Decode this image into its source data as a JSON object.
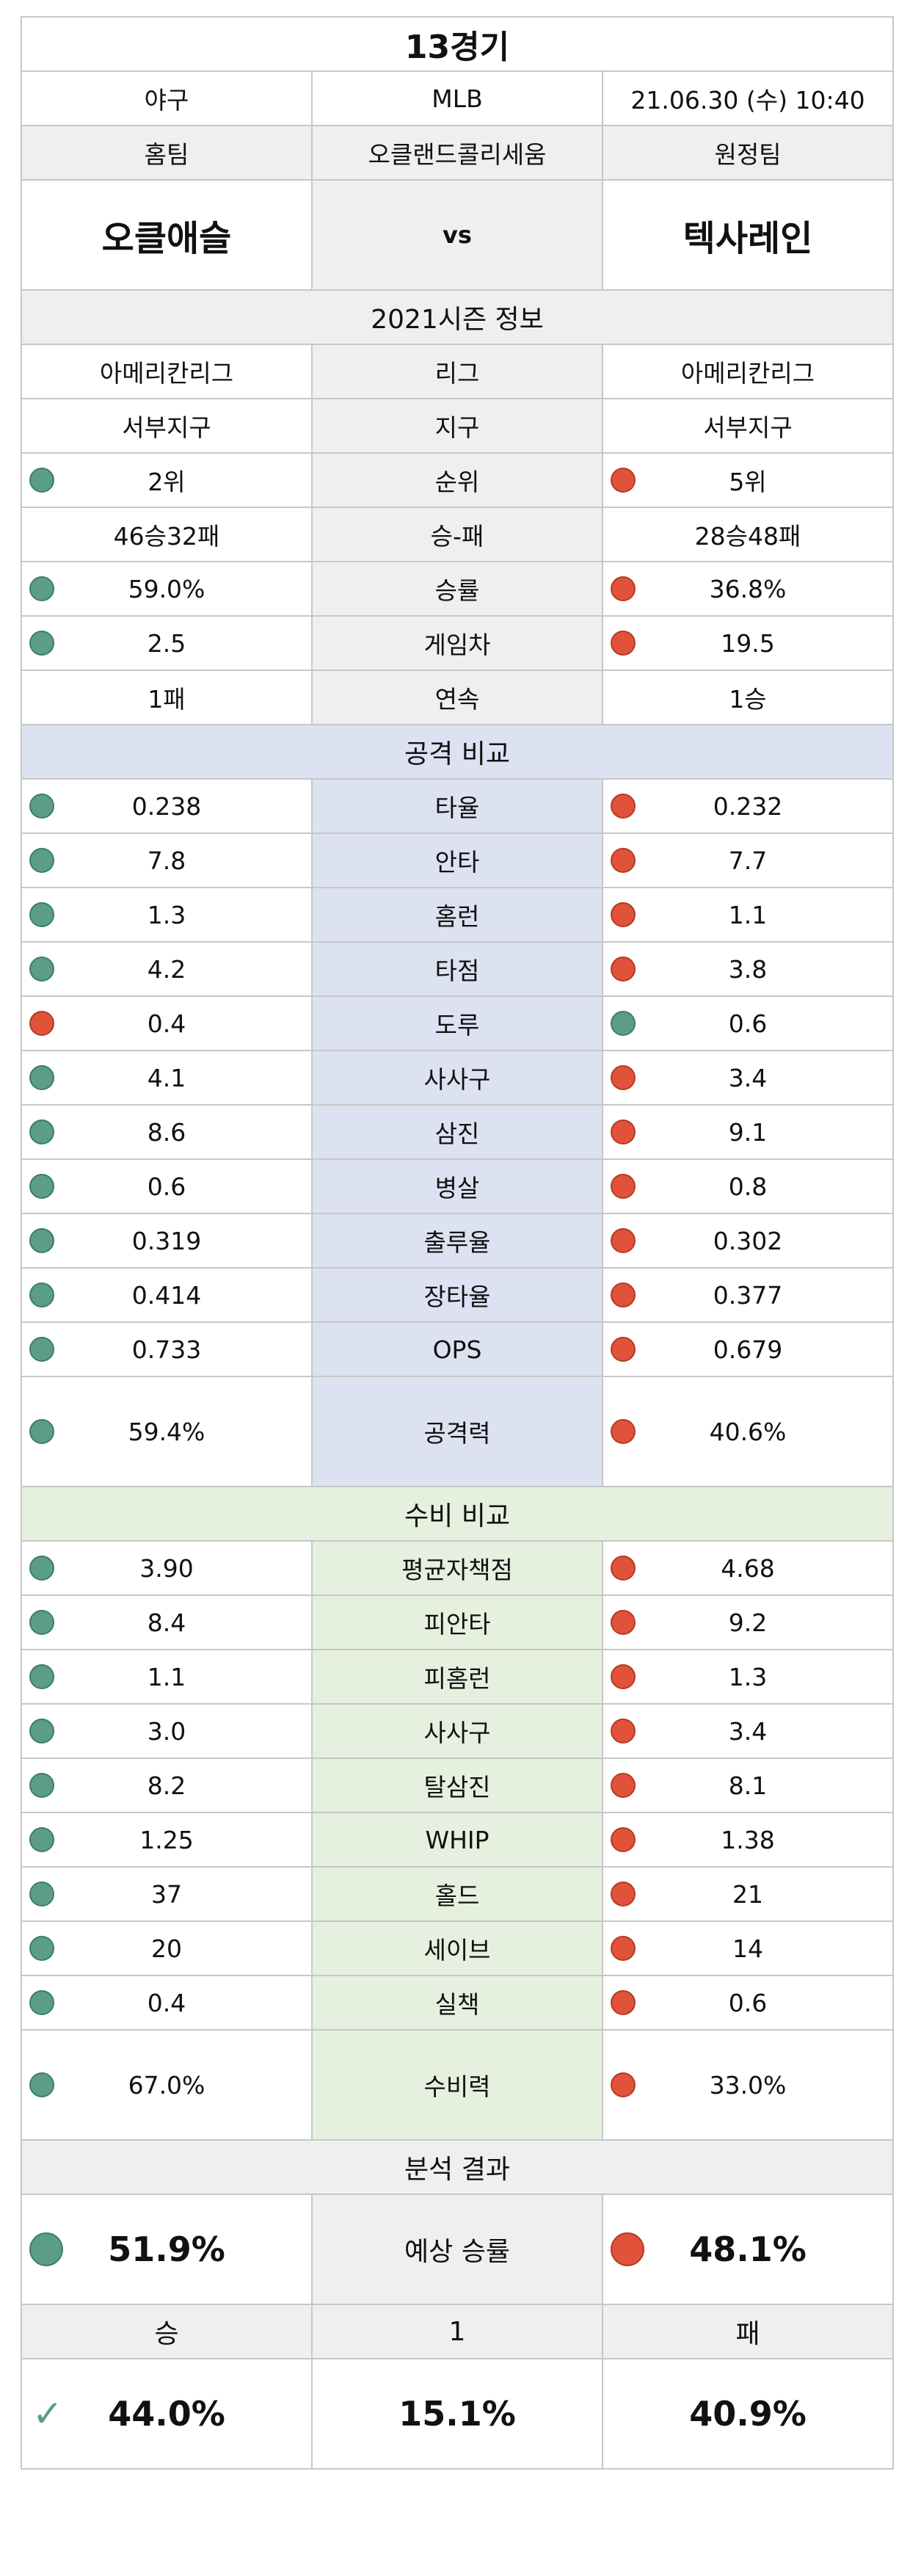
{
  "header": {
    "title": "13경기",
    "sport": "야구",
    "league": "MLB",
    "datetime": "21.06.30 (수) 10:40",
    "home_label": "홈팀",
    "venue": "오클랜드콜리세움",
    "away_label": "원정팀",
    "home_team": "오클애슬",
    "vs": "vs",
    "away_team": "텍사레인"
  },
  "season": {
    "section_title": "2021시즌 정보",
    "rows": [
      {
        "label": "리그",
        "home": "아메리칸리그",
        "away": "아메리칸리그",
        "home_dot": "",
        "away_dot": ""
      },
      {
        "label": "지구",
        "home": "서부지구",
        "away": "서부지구",
        "home_dot": "",
        "away_dot": ""
      },
      {
        "label": "순위",
        "home": "2위",
        "away": "5위",
        "home_dot": "green",
        "away_dot": "red"
      },
      {
        "label": "승-패",
        "home": "46승32패",
        "away": "28승48패",
        "home_dot": "",
        "away_dot": ""
      },
      {
        "label": "승률",
        "home": "59.0%",
        "away": "36.8%",
        "home_dot": "green",
        "away_dot": "red"
      },
      {
        "label": "게임차",
        "home": "2.5",
        "away": "19.5",
        "home_dot": "green",
        "away_dot": "red"
      },
      {
        "label": "연속",
        "home": "1패",
        "away": "1승",
        "home_dot": "",
        "away_dot": ""
      }
    ]
  },
  "attack": {
    "section_title": "공격 비교",
    "rows": [
      {
        "label": "타율",
        "home": "0.238",
        "away": "0.232",
        "home_dot": "green",
        "away_dot": "red"
      },
      {
        "label": "안타",
        "home": "7.8",
        "away": "7.7",
        "home_dot": "green",
        "away_dot": "red"
      },
      {
        "label": "홈런",
        "home": "1.3",
        "away": "1.1",
        "home_dot": "green",
        "away_dot": "red"
      },
      {
        "label": "타점",
        "home": "4.2",
        "away": "3.8",
        "home_dot": "green",
        "away_dot": "red"
      },
      {
        "label": "도루",
        "home": "0.4",
        "away": "0.6",
        "home_dot": "red",
        "away_dot": "green"
      },
      {
        "label": "사사구",
        "home": "4.1",
        "away": "3.4",
        "home_dot": "green",
        "away_dot": "red"
      },
      {
        "label": "삼진",
        "home": "8.6",
        "away": "9.1",
        "home_dot": "green",
        "away_dot": "red"
      },
      {
        "label": "병살",
        "home": "0.6",
        "away": "0.8",
        "home_dot": "green",
        "away_dot": "red"
      },
      {
        "label": "출루율",
        "home": "0.319",
        "away": "0.302",
        "home_dot": "green",
        "away_dot": "red"
      },
      {
        "label": "장타율",
        "home": "0.414",
        "away": "0.377",
        "home_dot": "green",
        "away_dot": "red"
      },
      {
        "label": "OPS",
        "home": "0.733",
        "away": "0.679",
        "home_dot": "green",
        "away_dot": "red"
      }
    ],
    "power": {
      "label": "공격력",
      "home": "59.4%",
      "away": "40.6%",
      "home_dot": "green",
      "away_dot": "red"
    }
  },
  "defense": {
    "section_title": "수비 비교",
    "rows": [
      {
        "label": "평균자책점",
        "home": "3.90",
        "away": "4.68",
        "home_dot": "green",
        "away_dot": "red"
      },
      {
        "label": "피안타",
        "home": "8.4",
        "away": "9.2",
        "home_dot": "green",
        "away_dot": "red"
      },
      {
        "label": "피홈런",
        "home": "1.1",
        "away": "1.3",
        "home_dot": "green",
        "away_dot": "red"
      },
      {
        "label": "사사구",
        "home": "3.0",
        "away": "3.4",
        "home_dot": "green",
        "away_dot": "red"
      },
      {
        "label": "탈삼진",
        "home": "8.2",
        "away": "8.1",
        "home_dot": "green",
        "away_dot": "red"
      },
      {
        "label": "WHIP",
        "home": "1.25",
        "away": "1.38",
        "home_dot": "green",
        "away_dot": "red"
      },
      {
        "label": "홀드",
        "home": "37",
        "away": "21",
        "home_dot": "green",
        "away_dot": "red"
      },
      {
        "label": "세이브",
        "home": "20",
        "away": "14",
        "home_dot": "green",
        "away_dot": "red"
      },
      {
        "label": "실책",
        "home": "0.4",
        "away": "0.6",
        "home_dot": "green",
        "away_dot": "red"
      }
    ],
    "power": {
      "label": "수비력",
      "home": "67.0%",
      "away": "33.0%",
      "home_dot": "green",
      "away_dot": "red"
    }
  },
  "analysis": {
    "section_title": "분석 결과",
    "expected_label": "예상 승률",
    "home_expected": "51.9%",
    "away_expected": "48.1%",
    "win_label": "승",
    "draw_label": "1",
    "loss_label": "패",
    "win_pct": "44.0%",
    "draw_pct": "15.1%",
    "loss_pct": "40.9%",
    "pick": "win"
  },
  "colors": {
    "green": "#5b9d87",
    "red": "#e0533a",
    "grey": "#efefef",
    "attack_bg": "#dde2f2",
    "defense_bg": "#e6f0df"
  }
}
